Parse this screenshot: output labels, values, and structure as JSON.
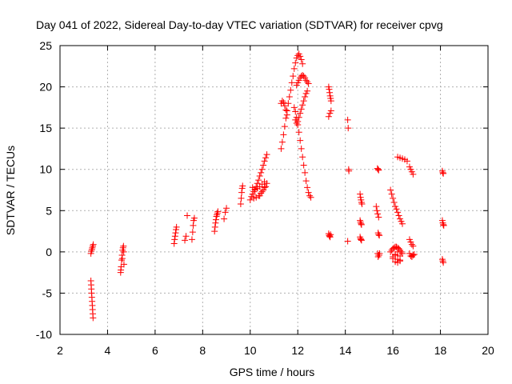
{
  "chart_data": {
    "type": "scatter",
    "title": "Day 041 of 2022, Sidereal Day-to-day VTEC variation (SDTVAR) for receiver cpvg",
    "xlabel": "GPS time / hours",
    "ylabel": "SDTVAR / TECUs",
    "xlim": [
      2,
      20
    ],
    "ylim": [
      -10,
      25
    ],
    "xticks": [
      2,
      4,
      6,
      8,
      10,
      12,
      14,
      16,
      18,
      20
    ],
    "yticks": [
      -10,
      -5,
      0,
      5,
      10,
      15,
      20,
      25
    ],
    "grid": true,
    "marker": "+",
    "color": "#ff0000",
    "series": [
      {
        "name": "SDTVAR",
        "x": [
          3.3,
          3.32,
          3.34,
          3.36,
          3.38,
          3.4,
          3.3,
          3.31,
          3.32,
          3.33,
          3.34,
          3.35,
          3.36,
          3.37,
          3.38,
          3.39,
          4.55,
          4.57,
          4.59,
          4.61,
          4.63,
          4.65,
          4.67,
          4.69,
          4.56,
          4.62,
          4.68,
          6.8,
          6.82,
          6.84,
          6.86,
          6.88,
          6.9,
          7.25,
          7.3,
          7.35,
          7.55,
          7.58,
          7.6,
          7.62,
          7.65,
          8.5,
          8.52,
          8.54,
          8.56,
          8.58,
          8.6,
          8.62,
          8.64,
          8.9,
          8.95,
          9.0,
          9.6,
          9.62,
          9.64,
          9.66,
          9.68,
          10.0,
          10.05,
          10.1,
          10.15,
          10.2,
          10.25,
          10.3,
          10.35,
          10.4,
          10.45,
          10.5,
          10.55,
          10.6,
          10.65,
          10.7,
          10.1,
          10.2,
          10.3,
          10.4,
          10.5,
          10.6,
          10.15,
          10.25,
          10.35,
          10.45,
          10.55,
          10.65,
          10.4,
          10.5,
          10.6,
          10.7,
          11.3,
          11.35,
          11.4,
          11.45,
          11.5,
          11.55,
          11.6,
          11.65,
          11.7,
          11.75,
          11.8,
          11.85,
          11.9,
          11.95,
          12.0,
          12.05,
          12.1,
          12.15,
          12.2,
          11.3,
          11.35,
          11.4,
          11.45,
          11.5,
          11.55,
          11.9,
          11.95,
          12.0,
          12.05,
          12.1,
          12.15,
          12.2,
          12.25,
          12.3,
          12.35,
          12.4,
          11.95,
          12.0,
          12.05,
          12.1,
          12.15,
          12.2,
          12.25,
          12.3,
          12.35,
          12.4,
          12.45,
          11.85,
          11.9,
          11.95,
          12.0,
          12.05,
          12.1,
          12.15,
          12.2,
          12.25,
          12.3,
          12.35,
          12.4,
          12.45,
          12.5,
          12.55,
          13.3,
          13.32,
          13.34,
          13.36,
          13.38,
          13.4,
          13.3,
          13.35,
          13.4,
          13.3,
          13.32,
          13.34,
          13.36,
          13.38,
          14.1,
          14.12,
          14.14,
          14.15,
          14.1,
          14.62,
          14.64,
          14.66,
          14.68,
          14.7,
          14.62,
          14.64,
          14.66,
          14.68,
          14.62,
          14.64,
          14.66,
          14.68,
          15.35,
          15.38,
          15.4,
          15.3,
          15.33,
          15.36,
          15.4,
          15.38,
          15.4,
          15.43,
          15.36,
          15.4,
          15.38,
          15.42,
          15.44,
          15.9,
          15.95,
          16.0,
          16.05,
          16.1,
          16.15,
          16.2,
          16.25,
          16.3,
          16.35,
          16.4,
          16.2,
          16.3,
          16.4,
          16.5,
          16.6,
          16.7,
          16.75,
          16.8,
          16.85,
          15.9,
          15.95,
          16.0,
          16.05,
          16.1,
          16.15,
          16.2,
          16.25,
          16.3,
          16.35,
          16.4,
          16.0,
          16.1,
          16.2,
          16.3,
          16.1,
          16.2,
          16.3,
          16.0,
          16.1,
          16.2,
          16.3,
          16.7,
          16.75,
          16.8,
          16.85,
          16.7,
          16.75,
          16.8,
          16.85,
          16.9,
          18.08,
          18.1,
          18.12,
          18.08,
          18.1,
          18.12,
          18.14,
          18.08,
          18.1,
          18.12
        ],
        "y": [
          -0.2,
          0.1,
          0.3,
          0.5,
          0.7,
          0.9,
          -3.5,
          -4.0,
          -4.5,
          -5.0,
          -5.5,
          -6.0,
          -6.5,
          -7.0,
          -7.5,
          -8.0,
          -2.5,
          -1.8,
          -1.0,
          -0.4,
          0.2,
          0.5,
          0.7,
          -1.5,
          -2.2,
          -0.8,
          0.0,
          1.0,
          1.5,
          1.9,
          2.3,
          2.7,
          3.0,
          1.4,
          1.9,
          4.4,
          1.5,
          2.4,
          3.2,
          3.8,
          4.1,
          2.5,
          3.0,
          3.5,
          3.9,
          4.3,
          4.5,
          4.7,
          4.9,
          4.0,
          4.8,
          5.3,
          5.8,
          6.5,
          7.2,
          7.7,
          8.0,
          6.3,
          6.7,
          7.0,
          7.3,
          7.6,
          7.9,
          8.3,
          8.7,
          9.2,
          9.6,
          10.0,
          10.5,
          11.0,
          11.4,
          11.8,
          7.8,
          7.5,
          7.7,
          7.9,
          8.2,
          8.5,
          6.5,
          6.6,
          6.8,
          7.1,
          7.5,
          7.9,
          6.8,
          7.3,
          7.8,
          8.3,
          12.5,
          13.3,
          14.2,
          15.2,
          16.2,
          17.1,
          18.0,
          18.8,
          19.6,
          20.5,
          21.3,
          22.2,
          22.9,
          23.5,
          23.8,
          24.0,
          23.7,
          23.3,
          22.8,
          18.0,
          18.3,
          18.1,
          17.7,
          17.2,
          16.6,
          16.0,
          15.6,
          15.8,
          16.3,
          16.8,
          17.3,
          17.8,
          18.3,
          18.8,
          19.2,
          19.5,
          20.2,
          20.5,
          20.8,
          21.1,
          21.3,
          21.4,
          21.3,
          21.1,
          20.8,
          20.6,
          20.4,
          17.5,
          17.0,
          16.3,
          15.4,
          14.5,
          13.5,
          12.5,
          11.5,
          10.5,
          9.6,
          8.6,
          7.8,
          7.2,
          6.8,
          6.6,
          20.0,
          19.7,
          19.3,
          18.9,
          18.6,
          18.3,
          16.4,
          16.8,
          17.1,
          2.2,
          2.0,
          1.9,
          1.8,
          2.1,
          16.0,
          15.0,
          10.0,
          9.8,
          1.3,
          7.0,
          6.6,
          6.3,
          6.0,
          5.8,
          3.8,
          3.6,
          3.4,
          3.3,
          1.8,
          1.6,
          1.5,
          1.4,
          10.1,
          10.0,
          9.9,
          5.5,
          5.0,
          4.6,
          4.2,
          2.3,
          2.1,
          2.0,
          -0.2,
          -0.4,
          -0.6,
          -0.4,
          -0.2,
          7.5,
          7.0,
          6.5,
          6.0,
          5.5,
          5.2,
          4.8,
          4.4,
          4.0,
          3.7,
          3.4,
          11.5,
          11.4,
          11.3,
          11.2,
          11.0,
          10.3,
          10.0,
          9.7,
          9.4,
          0.0,
          0.2,
          0.4,
          0.5,
          0.6,
          0.6,
          0.5,
          0.4,
          0.2,
          0.0,
          -0.2,
          -0.8,
          -1.2,
          -1.3,
          -1.0,
          -0.4,
          -0.9,
          -1.1,
          -0.6,
          -0.3,
          0.0,
          -0.5,
          1.5,
          1.2,
          0.9,
          0.7,
          -0.2,
          -0.5,
          -0.6,
          -0.4,
          -0.3,
          9.8,
          9.6,
          9.5,
          3.8,
          3.5,
          3.3,
          3.2,
          -0.9,
          -1.1,
          -1.3
        ]
      }
    ]
  }
}
